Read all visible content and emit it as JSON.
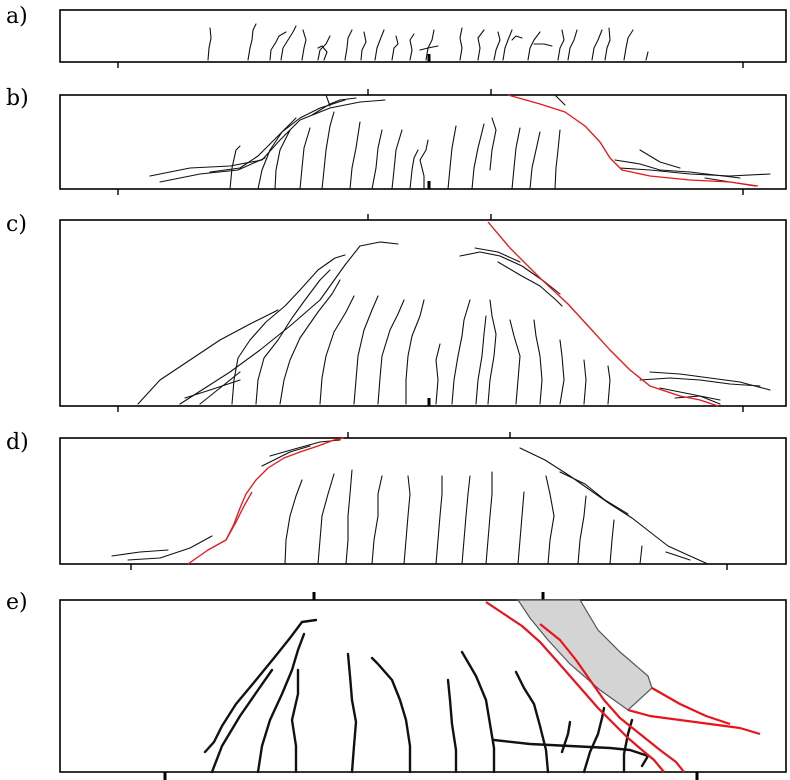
{
  "panels": [
    {
      "label": "a)"
    },
    {
      "label": "b)"
    },
    {
      "label": "c)"
    },
    {
      "label": "d)"
    },
    {
      "label": "e)"
    }
  ],
  "colors": {
    "crack": "#111111",
    "critical_crack": "#e8141a",
    "spalled_region": "#d4d4d4"
  }
}
